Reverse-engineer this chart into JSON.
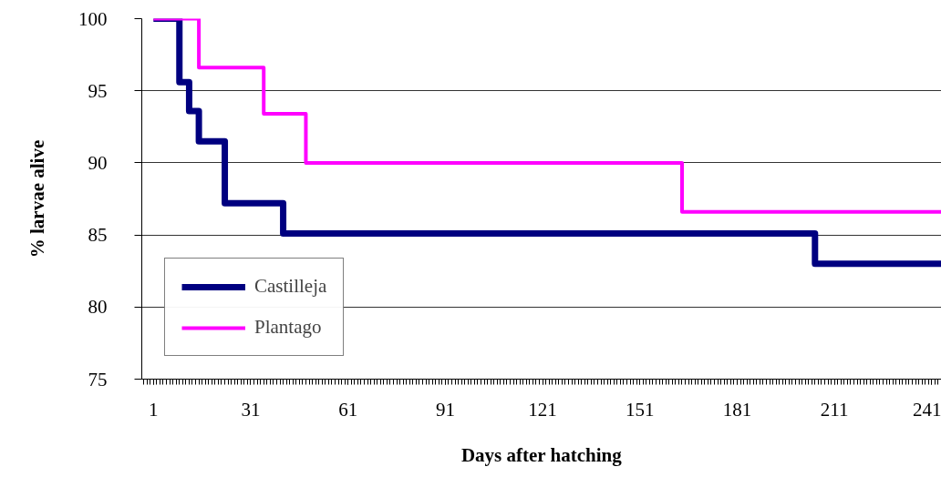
{
  "chart_data": {
    "type": "step",
    "xlabel": "Days after hatching",
    "ylabel": "% larvae alive",
    "series": [
      {
        "name": "Castilleja",
        "color": "#000080",
        "x": [
          1,
          9,
          12,
          15,
          23,
          41,
          205,
          244
        ],
        "values": [
          100,
          95.6,
          93.6,
          91.5,
          87.2,
          85.1,
          83.0,
          83.0
        ]
      },
      {
        "name": "Plantago",
        "color": "#ff00ff",
        "x": [
          1,
          15,
          35,
          48,
          164,
          244
        ],
        "values": [
          100,
          96.6,
          93.4,
          90.0,
          86.6,
          86.6
        ]
      }
    ],
    "xlim": [
      -2.6,
      244
    ],
    "xticks": [
      1,
      31,
      61,
      91,
      121,
      151,
      181,
      211,
      241
    ],
    "ylim": [
      75,
      100
    ],
    "yticks": [
      75,
      80,
      85,
      90,
      95,
      100
    ],
    "grid": "y",
    "legend": "bottom left",
    "line_style": "solid",
    "marker": "none"
  }
}
